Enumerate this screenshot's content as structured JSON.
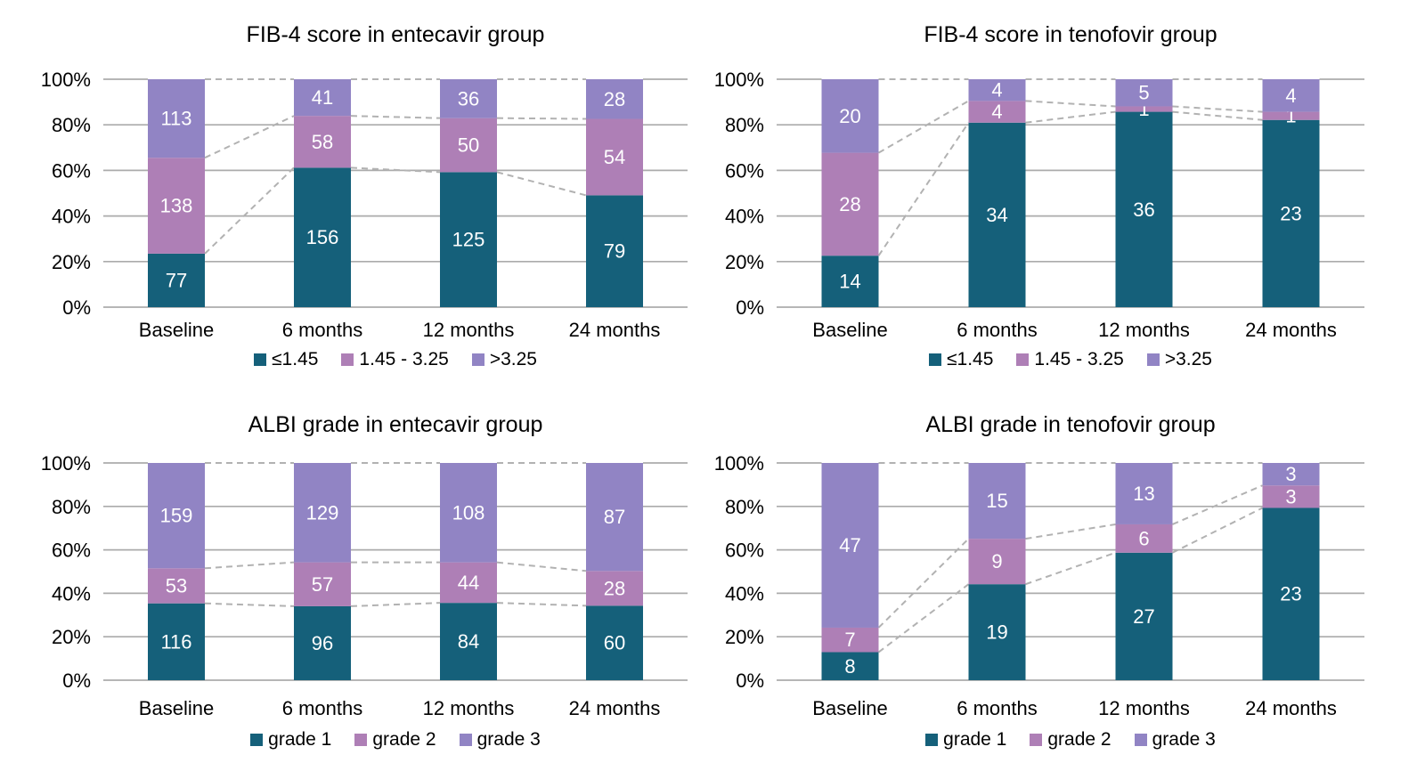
{
  "styles": {
    "background": "#ffffff",
    "gridline_color": "#ABABAB",
    "connector_color": "#B2B2B2",
    "text_color": "#000000",
    "value_label_color": "#FFFFFF",
    "series_colors": {
      "teal": "#15607A",
      "orchid": "#AE7FB6",
      "light_purple": "#9184C4"
    }
  },
  "chart_data": [
    {
      "id": "fib4-entecavir",
      "type": "bar",
      "stacked": true,
      "percent_stacked": true,
      "title": "FIB-4 score in entecavir group",
      "categories": [
        "Baseline",
        "6 months",
        "12 months",
        "24 months"
      ],
      "series": [
        {
          "name": "≤1.45",
          "color": "#15607A",
          "values": [
            77,
            156,
            125,
            79
          ]
        },
        {
          "name": "1.45 - 3.25",
          "color": "#AE7FB6",
          "values": [
            138,
            58,
            50,
            54
          ]
        },
        {
          "name": ">3.25",
          "color": "#9184C4",
          "values": [
            113,
            41,
            36,
            28
          ]
        }
      ],
      "y_tick_labels": [
        "0%",
        "20%",
        "40%",
        "60%",
        "80%",
        "100%"
      ],
      "ylim": [
        0,
        100
      ],
      "grid": true,
      "legend_position": "bottom",
      "connector_lines": true
    },
    {
      "id": "fib4-tenofovir",
      "type": "bar",
      "stacked": true,
      "percent_stacked": true,
      "title": "FIB-4 score in tenofovir group",
      "categories": [
        "Baseline",
        "6 months",
        "12 months",
        "24 months"
      ],
      "series": [
        {
          "name": "≤1.45",
          "color": "#15607A",
          "values": [
            14,
            34,
            36,
            23
          ]
        },
        {
          "name": "1.45 - 3.25",
          "color": "#AE7FB6",
          "values": [
            28,
            4,
            1,
            1
          ]
        },
        {
          "name": ">3.25",
          "color": "#9184C4",
          "values": [
            20,
            4,
            5,
            4
          ]
        }
      ],
      "y_tick_labels": [
        "0%",
        "20%",
        "40%",
        "60%",
        "80%",
        "100%"
      ],
      "ylim": [
        0,
        100
      ],
      "grid": true,
      "legend_position": "bottom",
      "connector_lines": true
    },
    {
      "id": "albi-entecavir",
      "type": "bar",
      "stacked": true,
      "percent_stacked": true,
      "title": "ALBI grade in entecavir group",
      "categories": [
        "Baseline",
        "6 months",
        "12 months",
        "24 months"
      ],
      "series": [
        {
          "name": "grade 1",
          "color": "#15607A",
          "values": [
            116,
            96,
            84,
            60
          ]
        },
        {
          "name": "grade 2",
          "color": "#AE7FB6",
          "values": [
            53,
            57,
            44,
            28
          ]
        },
        {
          "name": "grade 3",
          "color": "#9184C4",
          "values": [
            159,
            129,
            108,
            87
          ]
        }
      ],
      "y_tick_labels": [
        "0%",
        "20%",
        "40%",
        "60%",
        "80%",
        "100%"
      ],
      "ylim": [
        0,
        100
      ],
      "grid": true,
      "legend_position": "bottom",
      "connector_lines": true
    },
    {
      "id": "albi-tenofovir",
      "type": "bar",
      "stacked": true,
      "percent_stacked": true,
      "title": "ALBI grade in tenofovir group",
      "categories": [
        "Baseline",
        "6 months",
        "12 months",
        "24 months"
      ],
      "series": [
        {
          "name": "grade 1",
          "color": "#15607A",
          "values": [
            8,
            19,
            27,
            23
          ]
        },
        {
          "name": "grade 2",
          "color": "#AE7FB6",
          "values": [
            7,
            9,
            6,
            3
          ]
        },
        {
          "name": "grade 3",
          "color": "#9184C4",
          "values": [
            47,
            15,
            13,
            3
          ]
        }
      ],
      "y_tick_labels": [
        "0%",
        "20%",
        "40%",
        "60%",
        "80%",
        "100%"
      ],
      "ylim": [
        0,
        100
      ],
      "grid": true,
      "legend_position": "bottom",
      "connector_lines": true
    }
  ]
}
